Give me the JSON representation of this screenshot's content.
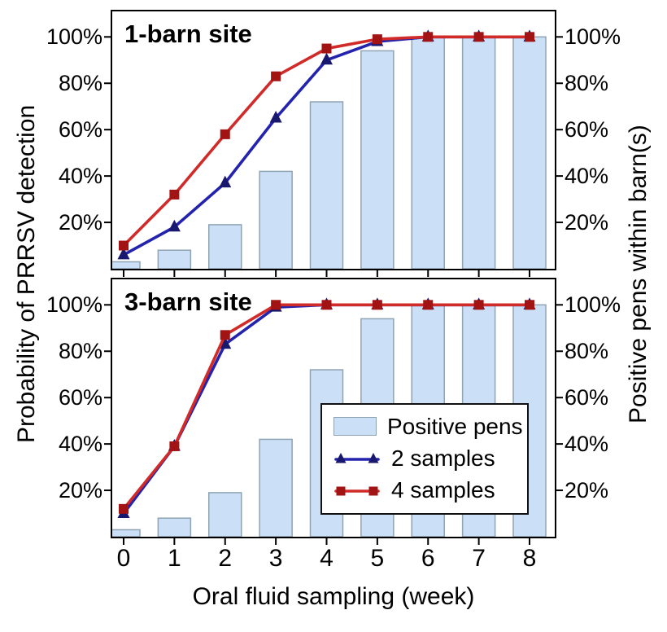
{
  "figure": {
    "x_axis_title": "Oral fluid sampling (week)",
    "left_axis_title": "Probability of PRRSV detection",
    "right_axis_title": "Positive pens within barn(s)"
  },
  "legend": {
    "items": [
      {
        "label": "Positive pens",
        "type": "bar"
      },
      {
        "label": "2 samples",
        "type": "line",
        "marker": "triangle"
      },
      {
        "label": "4 samples",
        "type": "line",
        "marker": "square"
      }
    ]
  },
  "colors": {
    "bar_fill": "#CBE0F6",
    "bar_edge": "#8FA3B2",
    "line_2samples": "#2323AE",
    "marker_2samples": "#18186F",
    "line_4samples": "#D02B28",
    "marker_4samples": "#A21414",
    "axis": "#000000",
    "text": "#000000"
  },
  "chart_data": [
    {
      "type": "bar+line",
      "title": "1-barn site",
      "x": [
        0,
        1,
        2,
        3,
        4,
        5,
        6,
        7,
        8
      ],
      "x_tick_labels": [
        "0",
        "1",
        "2",
        "3",
        "4",
        "5",
        "6",
        "7",
        "8"
      ],
      "y_ticks": [
        20,
        40,
        60,
        80,
        100
      ],
      "y_tick_labels": [
        "20%",
        "40%",
        "60%",
        "80%",
        "100%"
      ],
      "ylim": [
        0,
        111
      ],
      "grid": false,
      "series": [
        {
          "name": "Positive pens",
          "type": "bar",
          "values": [
            3,
            8,
            19,
            42,
            72,
            94,
            100,
            100,
            100
          ]
        },
        {
          "name": "2 samples",
          "type": "line",
          "marker": "triangle",
          "values": [
            6,
            18,
            37,
            65,
            90,
            98,
            100,
            100,
            100
          ]
        },
        {
          "name": "4 samples",
          "type": "line",
          "marker": "square",
          "values": [
            10,
            32,
            58,
            83,
            95,
            99,
            100,
            100,
            100
          ]
        }
      ]
    },
    {
      "type": "bar+line",
      "title": "3-barn site",
      "x": [
        0,
        1,
        2,
        3,
        4,
        5,
        6,
        7,
        8
      ],
      "x_tick_labels": [
        "0",
        "1",
        "2",
        "3",
        "4",
        "5",
        "6",
        "7",
        "8"
      ],
      "y_ticks": [
        20,
        40,
        60,
        80,
        100
      ],
      "y_tick_labels": [
        "20%",
        "40%",
        "60%",
        "80%",
        "100%"
      ],
      "ylim": [
        0,
        111
      ],
      "grid": false,
      "series": [
        {
          "name": "Positive pens",
          "type": "bar",
          "values": [
            3,
            8,
            19,
            42,
            72,
            94,
            100,
            100,
            100
          ]
        },
        {
          "name": "2 samples",
          "type": "line",
          "marker": "triangle",
          "values": [
            10,
            39,
            83,
            99,
            100,
            100,
            100,
            100,
            100
          ]
        },
        {
          "name": "4 samples",
          "type": "line",
          "marker": "square",
          "values": [
            12,
            39,
            87,
            100,
            100,
            100,
            100,
            100,
            100
          ]
        }
      ]
    }
  ]
}
